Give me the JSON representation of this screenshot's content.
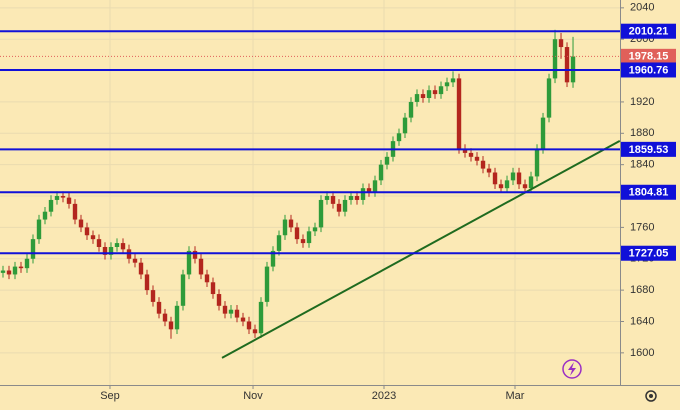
{
  "chart_data": {
    "type": "candlestick",
    "x": [
      0,
      1,
      2,
      3,
      4,
      5,
      6,
      7,
      8,
      9,
      10,
      11,
      12,
      13,
      14,
      15,
      16,
      17,
      18,
      19,
      20,
      21,
      22,
      23,
      24,
      25,
      26,
      27,
      28,
      29,
      30,
      31,
      32,
      33,
      34,
      35,
      36,
      37,
      38,
      39,
      40,
      41,
      42,
      43,
      44,
      45,
      46,
      47,
      48,
      49,
      50,
      51,
      52,
      53,
      54,
      55,
      56,
      57,
      58,
      59,
      60,
      61,
      62,
      63,
      64,
      65,
      66,
      67,
      68,
      69,
      70,
      71,
      72,
      73,
      74,
      75,
      76,
      77,
      78,
      79,
      80,
      81,
      82,
      83,
      84,
      85,
      86,
      87,
      88,
      89,
      90,
      91,
      92,
      93,
      94,
      95
    ],
    "open": [
      1702,
      1705,
      1700,
      1710,
      1708,
      1720,
      1745,
      1770,
      1780,
      1795,
      1800,
      1798,
      1790,
      1770,
      1760,
      1750,
      1745,
      1735,
      1725,
      1735,
      1740,
      1732,
      1720,
      1715,
      1700,
      1680,
      1665,
      1650,
      1640,
      1630,
      1660,
      1700,
      1730,
      1720,
      1700,
      1690,
      1675,
      1660,
      1650,
      1655,
      1645,
      1640,
      1630,
      1625,
      1665,
      1710,
      1730,
      1750,
      1770,
      1760,
      1745,
      1740,
      1755,
      1760,
      1795,
      1800,
      1790,
      1780,
      1795,
      1800,
      1795,
      1810,
      1805,
      1820,
      1840,
      1850,
      1870,
      1880,
      1900,
      1920,
      1930,
      1925,
      1935,
      1930,
      1940,
      1945,
      1950,
      1860,
      1855,
      1850,
      1845,
      1835,
      1830,
      1815,
      1810,
      1820,
      1830,
      1815,
      1810,
      1825,
      1860,
      1900,
      1950,
      2000,
      1990,
      1945
    ],
    "high": [
      1711,
      1711,
      1716,
      1716,
      1726,
      1751,
      1776,
      1786,
      1801,
      1806,
      1806,
      1804,
      1796,
      1776,
      1766,
      1756,
      1751,
      1741,
      1741,
      1746,
      1746,
      1738,
      1726,
      1721,
      1706,
      1686,
      1671,
      1656,
      1646,
      1666,
      1706,
      1736,
      1736,
      1726,
      1706,
      1696,
      1681,
      1666,
      1661,
      1661,
      1651,
      1646,
      1636,
      1671,
      1716,
      1736,
      1756,
      1776,
      1776,
      1766,
      1751,
      1761,
      1766,
      1801,
      1806,
      1806,
      1796,
      1801,
      1806,
      1806,
      1816,
      1816,
      1826,
      1846,
      1856,
      1876,
      1886,
      1906,
      1926,
      1936,
      1936,
      1941,
      1941,
      1946,
      1951,
      1959,
      1956,
      1866,
      1861,
      1856,
      1851,
      1841,
      1836,
      1821,
      1826,
      1836,
      1836,
      1821,
      1831,
      1866,
      1906,
      1956,
      2012,
      2008,
      1996,
      2003
    ],
    "low": [
      1696,
      1694,
      1694,
      1702,
      1702,
      1714,
      1739,
      1764,
      1774,
      1789,
      1792,
      1784,
      1764,
      1754,
      1744,
      1739,
      1729,
      1719,
      1719,
      1729,
      1726,
      1714,
      1709,
      1694,
      1674,
      1659,
      1644,
      1634,
      1618,
      1624,
      1654,
      1694,
      1714,
      1694,
      1684,
      1669,
      1654,
      1644,
      1644,
      1639,
      1634,
      1624,
      1619,
      1619,
      1659,
      1704,
      1724,
      1744,
      1754,
      1739,
      1734,
      1734,
      1749,
      1754,
      1789,
      1784,
      1774,
      1774,
      1789,
      1789,
      1789,
      1799,
      1799,
      1814,
      1834,
      1844,
      1864,
      1874,
      1894,
      1914,
      1919,
      1919,
      1924,
      1924,
      1934,
      1939,
      1854,
      1849,
      1844,
      1839,
      1829,
      1824,
      1809,
      1804,
      1804,
      1814,
      1809,
      1804,
      1804,
      1819,
      1854,
      1894,
      1944,
      1975,
      1939,
      1938
    ],
    "close": [
      1705,
      1700,
      1710,
      1708,
      1720,
      1745,
      1770,
      1780,
      1795,
      1800,
      1798,
      1790,
      1770,
      1760,
      1750,
      1745,
      1735,
      1725,
      1735,
      1740,
      1732,
      1720,
      1715,
      1700,
      1680,
      1665,
      1650,
      1640,
      1630,
      1660,
      1700,
      1730,
      1720,
      1700,
      1690,
      1675,
      1660,
      1650,
      1655,
      1645,
      1640,
      1630,
      1625,
      1665,
      1710,
      1730,
      1750,
      1770,
      1760,
      1745,
      1740,
      1755,
      1760,
      1795,
      1800,
      1790,
      1780,
      1795,
      1800,
      1795,
      1810,
      1805,
      1820,
      1840,
      1850,
      1870,
      1880,
      1900,
      1920,
      1930,
      1925,
      1935,
      1930,
      1940,
      1945,
      1950,
      1860,
      1855,
      1850,
      1845,
      1835,
      1830,
      1815,
      1810,
      1820,
      1830,
      1815,
      1810,
      1825,
      1860,
      1900,
      1950,
      2000,
      1990,
      1945,
      1978
    ],
    "up_color": "#2e9b3a",
    "down_color": "#b3261e",
    "xlim": [
      -0.5,
      102.83
    ],
    "ylim": [
      1559,
      2050
    ],
    "xticks": [
      {
        "value": 17.83,
        "label": "Sep"
      },
      {
        "value": 41.67,
        "label": "Nov"
      },
      {
        "value": 63.5,
        "label": "2023"
      },
      {
        "value": 85.33,
        "label": "Mar"
      }
    ],
    "yticks": [
      1600,
      1640,
      1680,
      1720,
      1760,
      1800,
      1840,
      1880,
      1920,
      1960,
      2000,
      2040
    ],
    "grid": true,
    "levels": [
      2010.21,
      1960.76,
      1859.53,
      1804.81,
      1727.05
    ],
    "level_color": "#1010d8",
    "last_price": 1978.15,
    "last_price_color": "#e0605a",
    "trend_line": {
      "x": [
        36.5,
        102.8
      ],
      "y": [
        1593.6,
        1870.4
      ],
      "color": "#1f6b1f"
    }
  }
}
